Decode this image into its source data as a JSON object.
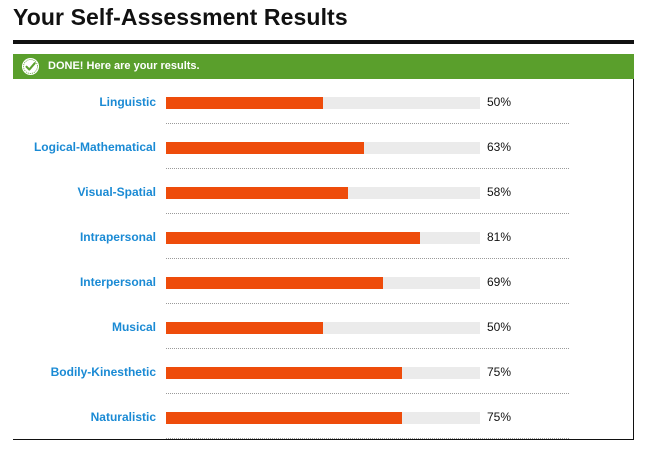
{
  "page": {
    "title": "Your Self-Assessment Results"
  },
  "banner": {
    "icon": "checkmark-icon",
    "text": "DONE! Here are your results.",
    "color": "#5a9f2c"
  },
  "colors": {
    "bar_fill": "#ee4c0b",
    "bar_track": "#ebebeb",
    "label": "#1a8ad4"
  },
  "results": [
    {
      "label": "Linguistic",
      "percent_label": "50%",
      "value": 50
    },
    {
      "label": "Logical-Mathematical",
      "percent_label": "63%",
      "value": 63
    },
    {
      "label": "Visual-Spatial",
      "percent_label": "58%",
      "value": 58
    },
    {
      "label": "Intrapersonal",
      "percent_label": "81%",
      "value": 81
    },
    {
      "label": "Interpersonal",
      "percent_label": "69%",
      "value": 69
    },
    {
      "label": "Musical",
      "percent_label": "50%",
      "value": 50
    },
    {
      "label": "Bodily-Kinesthetic",
      "percent_label": "75%",
      "value": 75
    },
    {
      "label": "Naturalistic",
      "percent_label": "75%",
      "value": 75
    }
  ]
}
